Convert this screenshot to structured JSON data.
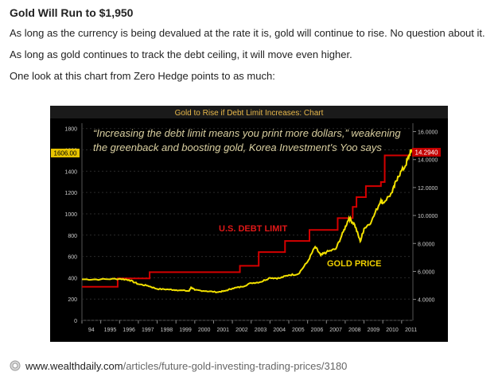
{
  "article": {
    "headline": "Gold Will Run to $1,950",
    "paragraphs": [
      "As long as the currency is being devalued at the rate it is, gold will continue to rise. No question about it.",
      "As long as gold continues to track the debt ceiling, it will move even higher.",
      "One look at this chart from Zero Hedge points to as much:"
    ]
  },
  "source": {
    "icon": "link-icon",
    "domain": "www.wealthdaily.com",
    "path": "/articles/future-gold-investing-trading-prices/3180"
  },
  "colors": {
    "gold_line": "#f2e000",
    "debt_line": "#d40000",
    "debt_label": "#e01818",
    "gold_label": "#f0d000",
    "title": "#e8b84a",
    "chart_bg": "#000000"
  },
  "chart_data": {
    "type": "line",
    "title": "Gold to Rise if Debt Limit Increases: Chart",
    "quote_lines": [
      "“Increasing the debt limit means you print more dollars,” weakening",
      "the greenback and boosting gold, Korea Investment's Yoo says"
    ],
    "x_ticks": [
      "94",
      "1995",
      "1996",
      "1997",
      "1998",
      "1999",
      "2000",
      "2001",
      "2002",
      "2003",
      "2004",
      "2005",
      "2006",
      "2007",
      "2008",
      "2009",
      "2010",
      "2011"
    ],
    "xlim": [
      1994,
      2011.6
    ],
    "left_axis": {
      "ylim": [
        0,
        1850
      ],
      "ticks": [
        0,
        200,
        400,
        600,
        800,
        1000,
        1200,
        1400,
        1600,
        1800
      ]
    },
    "right_axis": {
      "ylim": [
        2.5,
        16.6
      ],
      "ticks": [
        "4.0000",
        "6.0000",
        "8.0000",
        "10.0000",
        "12.0000",
        "14.0000",
        "16.0000"
      ]
    },
    "last_value_left": "1606.00",
    "last_value_right": "14.2940",
    "series": [
      {
        "name": "U.S. DEBT LIMIT",
        "axis": "right",
        "steps": [
          [
            1994.0,
            4.9
          ],
          [
            1995.9,
            5.5
          ],
          [
            1997.6,
            5.95
          ],
          [
            2002.4,
            6.4
          ],
          [
            2003.4,
            7.38
          ],
          [
            2004.8,
            8.18
          ],
          [
            2006.1,
            8.965
          ],
          [
            2007.6,
            9.815
          ],
          [
            2008.4,
            10.615
          ],
          [
            2008.6,
            11.315
          ],
          [
            2009.1,
            12.104
          ],
          [
            2009.9,
            12.394
          ],
          [
            2010.1,
            14.294
          ],
          [
            2011.5,
            14.294
          ]
        ]
      },
      {
        "name": "GOLD PRICE",
        "axis": "left",
        "points": [
          [
            1994.0,
            385
          ],
          [
            1995.0,
            385
          ],
          [
            1996.0,
            390
          ],
          [
            1996.5,
            380
          ],
          [
            1997.0,
            340
          ],
          [
            1997.5,
            325
          ],
          [
            1998.0,
            295
          ],
          [
            1998.6,
            290
          ],
          [
            1999.0,
            285
          ],
          [
            1999.7,
            275
          ],
          [
            1999.8,
            310
          ],
          [
            2000.0,
            285
          ],
          [
            2000.6,
            275
          ],
          [
            2001.2,
            265
          ],
          [
            2001.6,
            275
          ],
          [
            2002.0,
            300
          ],
          [
            2002.5,
            315
          ],
          [
            2003.0,
            350
          ],
          [
            2003.5,
            360
          ],
          [
            2004.0,
            400
          ],
          [
            2004.5,
            395
          ],
          [
            2005.0,
            425
          ],
          [
            2005.5,
            435
          ],
          [
            2006.0,
            550
          ],
          [
            2006.4,
            690
          ],
          [
            2006.7,
            610
          ],
          [
            2007.0,
            640
          ],
          [
            2007.5,
            670
          ],
          [
            2007.9,
            830
          ],
          [
            2008.2,
            960
          ],
          [
            2008.5,
            900
          ],
          [
            2008.8,
            740
          ],
          [
            2009.0,
            860
          ],
          [
            2009.4,
            930
          ],
          [
            2009.9,
            1130
          ],
          [
            2010.0,
            1100
          ],
          [
            2010.5,
            1200
          ],
          [
            2010.8,
            1350
          ],
          [
            2011.2,
            1450
          ],
          [
            2011.4,
            1550
          ],
          [
            2011.55,
            1606
          ]
        ]
      }
    ]
  }
}
